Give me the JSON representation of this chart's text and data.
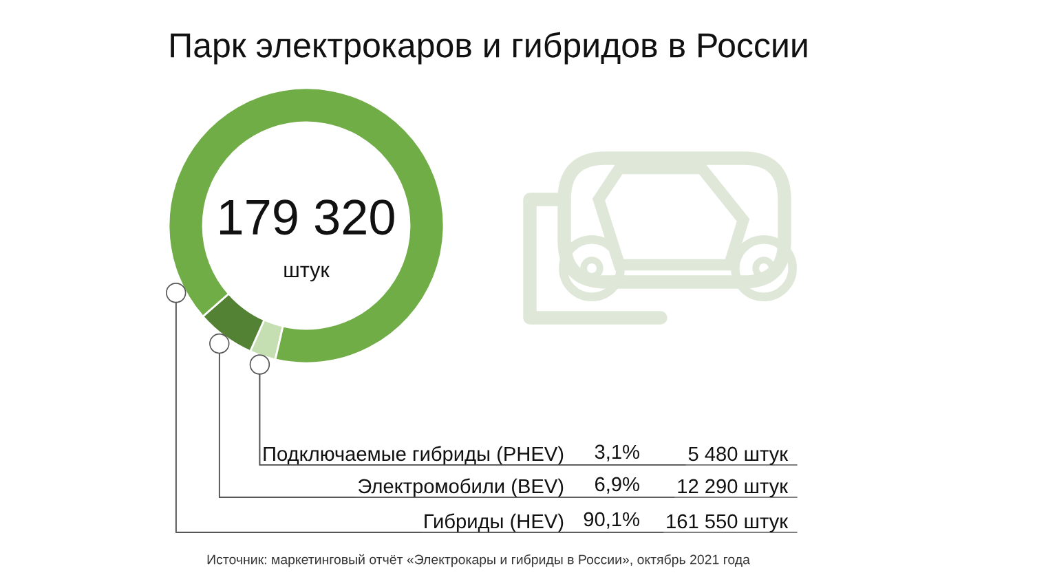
{
  "chart_data": {
    "type": "donut",
    "title": "Парк электрокаров и гибридов в России",
    "categories": [
      "Подключаемые гибриды (PHEV)",
      "Электромобили (BEV)",
      "Гибриды (HEV)"
    ],
    "values": [
      5480,
      12290,
      161550
    ],
    "colors": [
      "#c5dfb3",
      "#548235",
      "#70ad47"
    ],
    "value_labels": [
      "5 480 штук",
      "12 290 штук",
      "161 550 штук"
    ],
    "annotations": [
      "179 320",
      "штук",
      "3,1%",
      "6,9%",
      "90,1%",
      "Источник: маркетинговый отчёт «Электрокары и гибриды в России», октябрь 2021 года"
    ]
  }
}
